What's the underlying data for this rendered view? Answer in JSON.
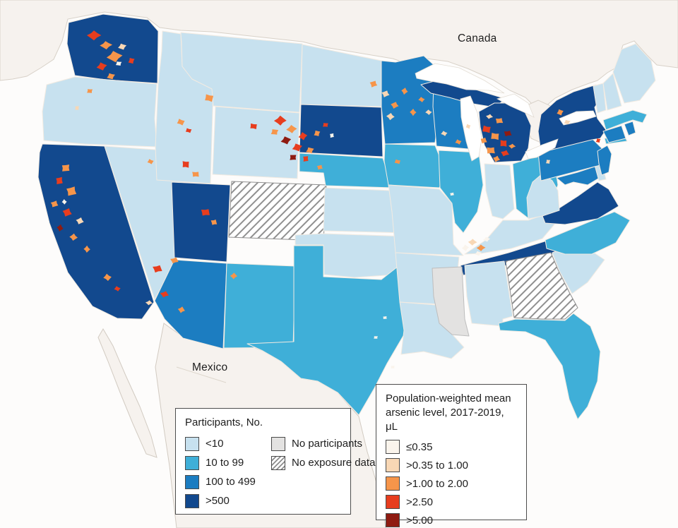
{
  "figure": {
    "labels": {
      "canada": "Canada",
      "mexico": "Mexico"
    }
  },
  "legend_participants": {
    "title": "Participants, No.",
    "items": [
      {
        "label": "<10",
        "color": "#c7e1ef"
      },
      {
        "label": "10 to 99",
        "color": "#3fafd8"
      },
      {
        "label": "100 to 499",
        "color": "#1c7dc1"
      },
      {
        "label": ">500",
        "color": "#12498e"
      },
      {
        "label": "No participants",
        "color": "#e3e2e1"
      },
      {
        "label": "No exposure data",
        "color": "hatch"
      }
    ],
    "colors": {
      "<10": "#c7e1ef",
      "10 to 99": "#3fafd8",
      "100 to 499": "#1c7dc1",
      ">500": "#12498e",
      "No participants": "#e3e2e1",
      "No exposure data": "url(#hatch)"
    }
  },
  "legend_arsenic": {
    "title_line1": "Population-weighted mean",
    "title_line2": "arsenic level, 2017-2019, μL",
    "items": [
      {
        "label": "≤0.35",
        "color": "#faf4ec"
      },
      {
        "label": ">0.35 to 1.00",
        "color": "#f8d7b5"
      },
      {
        "label": ">1.00 to 2.00",
        "color": "#f6954a"
      },
      {
        "label": ">2.50",
        "color": "#e73d1e"
      },
      {
        "label": ">5.00",
        "color": "#8f1b11"
      }
    ],
    "colors": {
      "≤0.35": "#faf4ec",
      ">0.35 to 1.00": "#f8d7b5",
      ">1.00 to 2.00": "#f6954a",
      ">2.50": "#e73d1e",
      ">5.00": "#8f1b11"
    }
  },
  "map": {
    "states": [
      {
        "id": "WA",
        "name": "Washington",
        "category": ">500"
      },
      {
        "id": "OR",
        "name": "Oregon",
        "category": "<10"
      },
      {
        "id": "CA",
        "name": "California",
        "category": ">500"
      },
      {
        "id": "NV",
        "name": "Nevada",
        "category": "<10"
      },
      {
        "id": "ID",
        "name": "Idaho",
        "category": "<10"
      },
      {
        "id": "MT",
        "name": "Montana",
        "category": "<10"
      },
      {
        "id": "WY",
        "name": "Wyoming",
        "category": "<10"
      },
      {
        "id": "UT",
        "name": "Utah",
        "category": ">500"
      },
      {
        "id": "CO",
        "name": "Colorado",
        "category": "No exposure data"
      },
      {
        "id": "AZ",
        "name": "Arizona",
        "category": "100 to 499"
      },
      {
        "id": "NM",
        "name": "New Mexico",
        "category": "10 to 99"
      },
      {
        "id": "ND",
        "name": "North Dakota",
        "category": "<10"
      },
      {
        "id": "SD",
        "name": "South Dakota",
        "category": ">500"
      },
      {
        "id": "NE",
        "name": "Nebraska",
        "category": "10 to 99"
      },
      {
        "id": "KS",
        "name": "Kansas",
        "category": "<10"
      },
      {
        "id": "OK",
        "name": "Oklahoma",
        "category": "<10"
      },
      {
        "id": "TX",
        "name": "Texas",
        "category": "10 to 99"
      },
      {
        "id": "MN",
        "name": "Minnesota",
        "category": "100 to 499"
      },
      {
        "id": "IA",
        "name": "Iowa",
        "category": "10 to 99"
      },
      {
        "id": "MO",
        "name": "Missouri",
        "category": "<10"
      },
      {
        "id": "AR",
        "name": "Arkansas",
        "category": "<10"
      },
      {
        "id": "LA",
        "name": "Louisiana",
        "category": "<10"
      },
      {
        "id": "WI",
        "name": "Wisconsin",
        "category": "100 to 499"
      },
      {
        "id": "IL",
        "name": "Illinois",
        "category": "10 to 99"
      },
      {
        "id": "MI",
        "name": "Michigan",
        "category": ">500"
      },
      {
        "id": "MI-UP",
        "name": "Michigan (Upper Peninsula)",
        "category": ">500"
      },
      {
        "id": "IN",
        "name": "Indiana",
        "category": "<10"
      },
      {
        "id": "OH",
        "name": "Ohio",
        "category": "10 to 99"
      },
      {
        "id": "KY",
        "name": "Kentucky",
        "category": "<10"
      },
      {
        "id": "TN",
        "name": "Tennessee",
        "category": ">500"
      },
      {
        "id": "MS",
        "name": "Mississippi",
        "category": "No participants"
      },
      {
        "id": "AL",
        "name": "Alabama",
        "category": "<10"
      },
      {
        "id": "GA",
        "name": "Georgia",
        "category": "No exposure data"
      },
      {
        "id": "FL",
        "name": "Florida",
        "category": "10 to 99"
      },
      {
        "id": "SC",
        "name": "South Carolina",
        "category": "<10"
      },
      {
        "id": "NC",
        "name": "North Carolina",
        "category": "10 to 99"
      },
      {
        "id": "VA",
        "name": "Virginia",
        "category": ">500"
      },
      {
        "id": "WV",
        "name": "West Virginia",
        "category": "<10"
      },
      {
        "id": "MD",
        "name": "Maryland",
        "category": "100 to 499"
      },
      {
        "id": "DE",
        "name": "Delaware",
        "category": "<10"
      },
      {
        "id": "PA",
        "name": "Pennsylvania",
        "category": "100 to 499"
      },
      {
        "id": "NJ",
        "name": "New Jersey",
        "category": "100 to 499"
      },
      {
        "id": "NY",
        "name": "New York",
        "category": ">500"
      },
      {
        "id": "NY-LI",
        "name": "New York (Long Island)",
        "category": "10 to 99"
      },
      {
        "id": "CT",
        "name": "Connecticut",
        "category": "100 to 499"
      },
      {
        "id": "RI",
        "name": "Rhode Island",
        "category": "100 to 499"
      },
      {
        "id": "MA",
        "name": "Massachusetts",
        "category": "10 to 99"
      },
      {
        "id": "VT",
        "name": "Vermont",
        "category": "<10"
      },
      {
        "id": "NH",
        "name": "New Hampshire",
        "category": "<10"
      },
      {
        "id": "ME",
        "name": "Maine",
        "category": "<10"
      }
    ],
    "hotspots": [
      [
        133,
        50,
        8,
        6,
        ">2.50"
      ],
      [
        150,
        64,
        7,
        5,
        ">1.00 to 2.00"
      ],
      [
        162,
        80,
        9,
        7,
        ">1.00 to 2.00"
      ],
      [
        144,
        94,
        6,
        5,
        ">2.50"
      ],
      [
        173,
        66,
        5,
        4,
        ">0.35 to 1.00"
      ],
      [
        157,
        108,
        5,
        4,
        ">1.00 to 2.00"
      ],
      [
        186,
        86,
        4,
        4,
        ">2.50"
      ],
      [
        168,
        90,
        4,
        3,
        "≤0.35"
      ],
      [
        127,
        129,
        4,
        3,
        ">1.00 to 2.00"
      ],
      [
        109,
        153,
        3,
        3,
        ">0.35 to 1.00"
      ],
      [
        93,
        238,
        6,
        5,
        ">1.00 to 2.00"
      ],
      [
        84,
        256,
        5,
        5,
        ">2.50"
      ],
      [
        101,
        271,
        7,
        6,
        ">1.00 to 2.00"
      ],
      [
        77,
        289,
        5,
        4,
        ">1.00 to 2.00"
      ],
      [
        95,
        301,
        6,
        5,
        ">2.50"
      ],
      [
        113,
        313,
        5,
        4,
        ">0.35 to 1.00"
      ],
      [
        85,
        323,
        4,
        4,
        ">5.00"
      ],
      [
        104,
        336,
        5,
        4,
        ">1.00 to 2.00"
      ],
      [
        123,
        353,
        4,
        4,
        ">1.00 to 2.00"
      ],
      [
        91,
        286,
        3,
        3,
        "≤0.35"
      ],
      [
        152,
        393,
        5,
        4,
        ">1.00 to 2.00"
      ],
      [
        166,
        409,
        4,
        3,
        ">2.50"
      ],
      [
        213,
        229,
        4,
        3,
        ">1.00 to 2.00"
      ],
      [
        256,
        173,
        5,
        4,
        ">1.00 to 2.00"
      ],
      [
        267,
        185,
        4,
        3,
        ">2.50"
      ],
      [
        296,
        139,
        6,
        5,
        ">1.00 to 2.00"
      ],
      [
        359,
        179,
        5,
        4,
        ">2.50"
      ],
      [
        263,
        233,
        5,
        5,
        ">2.50"
      ],
      [
        277,
        247,
        5,
        4,
        ">1.00 to 2.00"
      ],
      [
        291,
        301,
        6,
        5,
        ">2.50"
      ],
      [
        303,
        315,
        4,
        4,
        ">1.00 to 2.00"
      ],
      [
        223,
        381,
        6,
        5,
        ">2.50"
      ],
      [
        247,
        369,
        5,
        4,
        ">1.00 to 2.00"
      ],
      [
        233,
        417,
        5,
        4,
        ">2.50"
      ],
      [
        257,
        439,
        4,
        4,
        ">1.00 to 2.00"
      ],
      [
        211,
        429,
        4,
        3,
        ">0.35 to 1.00"
      ],
      [
        331,
        391,
        4,
        4,
        ">1.00 to 2.00"
      ],
      [
        397,
        171,
        7,
        6,
        ">2.50"
      ],
      [
        413,
        183,
        6,
        5,
        ">1.00 to 2.00"
      ],
      [
        429,
        193,
        5,
        5,
        ">2.50"
      ],
      [
        405,
        199,
        6,
        5,
        ">5.00"
      ],
      [
        421,
        209,
        6,
        5,
        ">2.50"
      ],
      [
        439,
        213,
        5,
        4,
        ">1.00 to 2.00"
      ],
      [
        449,
        189,
        4,
        4,
        ">1.00 to 2.00"
      ],
      [
        389,
        187,
        5,
        4,
        ">1.00 to 2.00"
      ],
      [
        461,
        177,
        4,
        3,
        ">2.50"
      ],
      [
        415,
        223,
        5,
        4,
        ">5.00"
      ],
      [
        433,
        225,
        4,
        4,
        ">2.50"
      ],
      [
        470,
        192,
        3,
        3,
        "≤0.35"
      ],
      [
        453,
        237,
        4,
        3,
        ">1.00 to 2.00"
      ],
      [
        529,
        119,
        5,
        4,
        ">1.00 to 2.00"
      ],
      [
        546,
        133,
        5,
        4,
        ">0.35 to 1.00"
      ],
      [
        559,
        149,
        5,
        4,
        ">1.00 to 2.00"
      ],
      [
        573,
        129,
        4,
        4,
        ">1.00 to 2.00"
      ],
      [
        553,
        165,
        5,
        4,
        ">0.35 to 1.00"
      ],
      [
        585,
        159,
        4,
        4,
        ">1.00 to 2.00"
      ],
      [
        607,
        159,
        4,
        3,
        ">0.35 to 1.00"
      ],
      [
        597,
        141,
        4,
        3,
        ">1.00 to 2.00"
      ],
      [
        629,
        189,
        4,
        3,
        ">0.35 to 1.00"
      ],
      [
        649,
        201,
        4,
        3,
        ">1.00 to 2.00"
      ],
      [
        663,
        179,
        3,
        3,
        ">0.35 to 1.00"
      ],
      [
        563,
        229,
        4,
        3,
        ">1.00 to 2.00"
      ],
      [
        689,
        183,
        6,
        5,
        ">2.50"
      ],
      [
        701,
        193,
        6,
        5,
        ">1.00 to 2.00"
      ],
      [
        713,
        203,
        5,
        5,
        ">2.50"
      ],
      [
        695,
        213,
        6,
        5,
        ">1.00 to 2.00"
      ],
      [
        707,
        171,
        5,
        4,
        ">1.00 to 2.00"
      ],
      [
        719,
        189,
        5,
        4,
        ">5.00"
      ],
      [
        685,
        199,
        4,
        4,
        ">1.00 to 2.00"
      ],
      [
        715,
        217,
        5,
        4,
        ">2.50"
      ],
      [
        703,
        225,
        4,
        4,
        ">1.00 to 2.00"
      ],
      [
        693,
        165,
        4,
        3,
        ">0.35 to 1.00"
      ],
      [
        725,
        207,
        4,
        3,
        ">1.00 to 2.00"
      ],
      [
        669,
        343,
        5,
        4,
        ">0.35 to 1.00"
      ],
      [
        681,
        351,
        5,
        4,
        ">1.00 to 2.00"
      ],
      [
        659,
        351,
        4,
        4,
        "≤0.35"
      ],
      [
        689,
        339,
        4,
        3,
        "≤0.35"
      ],
      [
        677,
        359,
        4,
        3,
        "≤0.35"
      ],
      [
        793,
        159,
        4,
        4,
        ">1.00 to 2.00"
      ],
      [
        803,
        173,
        4,
        3,
        ">0.35 to 1.00"
      ],
      [
        847,
        199,
        3,
        3,
        ">2.50"
      ],
      [
        776,
        229,
        3,
        3,
        ">0.35 to 1.00"
      ],
      [
        532,
        478,
        3,
        2,
        "≤0.35"
      ],
      [
        556,
        520,
        3,
        2,
        "≤0.35"
      ],
      [
        545,
        450,
        3,
        2,
        "≤0.35"
      ],
      [
        640,
        275,
        3,
        2,
        "≤0.35"
      ]
    ]
  }
}
